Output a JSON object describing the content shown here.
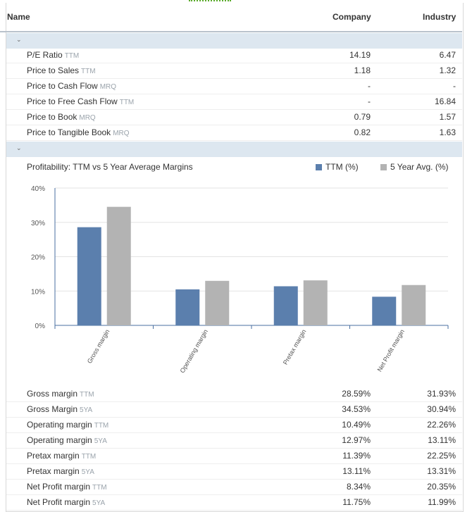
{
  "header": {
    "name": "Name",
    "company": "Company",
    "industry": "Industry"
  },
  "valuation": [
    {
      "label": "P/E Ratio",
      "period": "TTM",
      "company": "14.19",
      "industry": "6.47"
    },
    {
      "label": "Price to Sales",
      "period": "TTM",
      "company": "1.18",
      "industry": "1.32"
    },
    {
      "label": "Price to Cash Flow",
      "period": "MRQ",
      "company": "-",
      "industry": "-"
    },
    {
      "label": "Price to Free Cash Flow",
      "period": "TTM",
      "company": "-",
      "industry": "16.84"
    },
    {
      "label": "Price to Book",
      "period": "MRQ",
      "company": "0.79",
      "industry": "1.57"
    },
    {
      "label": "Price to Tangible Book",
      "period": "MRQ",
      "company": "0.82",
      "industry": "1.63"
    }
  ],
  "chart_data": {
    "type": "bar",
    "title": "Profitability: TTM vs 5 Year Average Margins",
    "categories": [
      "Gross margin",
      "Operating margin",
      "Pretax margin",
      "Net Profit margin"
    ],
    "series": [
      {
        "name": "TTM (%)",
        "color": "#5b7fad",
        "values": [
          28.59,
          10.49,
          11.39,
          8.34
        ]
      },
      {
        "name": "5 Year Avg. (%)",
        "color": "#b3b3b3",
        "values": [
          34.53,
          12.97,
          13.11,
          11.75
        ]
      }
    ],
    "ylim": [
      0,
      40
    ],
    "yticks": [
      0,
      10,
      20,
      30,
      40
    ],
    "ytick_labels": [
      "0%",
      "10%",
      "20%",
      "30%",
      "40%"
    ],
    "grid": true,
    "legend": "top-right"
  },
  "profitability": [
    {
      "label": "Gross margin",
      "period": "TTM",
      "company": "28.59%",
      "industry": "31.93%"
    },
    {
      "label": "Gross Margin",
      "period": "5YA",
      "company": "34.53%",
      "industry": "30.94%"
    },
    {
      "label": "Operating margin",
      "period": "TTM",
      "company": "10.49%",
      "industry": "22.26%"
    },
    {
      "label": "Operating margin",
      "period": "5YA",
      "company": "12.97%",
      "industry": "13.11%"
    },
    {
      "label": "Pretax margin",
      "period": "TTM",
      "company": "11.39%",
      "industry": "22.25%"
    },
    {
      "label": "Pretax margin",
      "period": "5YA",
      "company": "13.11%",
      "industry": "13.31%"
    },
    {
      "label": "Net Profit margin",
      "period": "TTM",
      "company": "8.34%",
      "industry": "20.35%"
    },
    {
      "label": "Net Profit margin",
      "period": "5YA",
      "company": "11.75%",
      "industry": "11.99%"
    }
  ]
}
